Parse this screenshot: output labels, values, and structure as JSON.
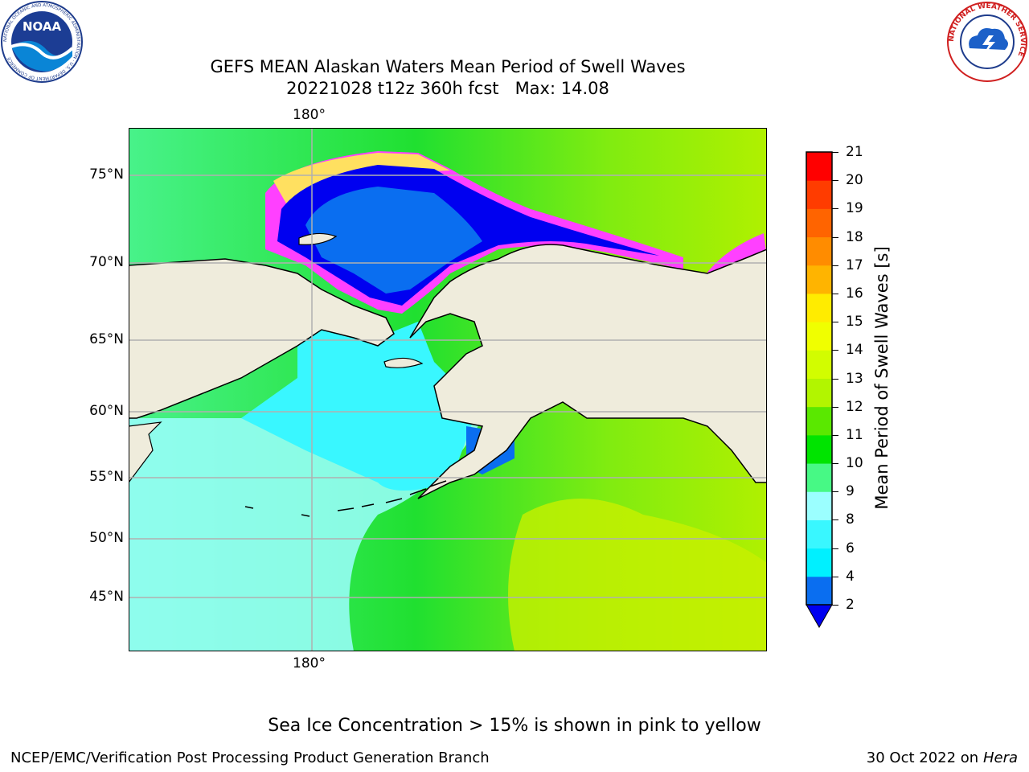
{
  "title": {
    "line1": "GEFS MEAN Alaskan Waters Mean Period of Swell Waves",
    "line2": "20221028 t12z 360h fcst   Max: 14.08"
  },
  "map": {
    "lon_labels_top": [
      "180°"
    ],
    "lon_labels_bottom": [
      "180°"
    ],
    "lat_labels": [
      "75°N",
      "70°N",
      "65°N",
      "60°N",
      "55°N",
      "50°N",
      "45°N"
    ],
    "land_color": "#efecdc",
    "grid_color": "#b0b0b0"
  },
  "colorbar": {
    "label": "Mean Period of Swell Waves [s]",
    "ticks": [
      "2",
      "4",
      "6",
      "8",
      "9",
      "10",
      "11",
      "12",
      "13",
      "14",
      "15",
      "16",
      "17",
      "18",
      "19",
      "20",
      "21"
    ],
    "colors": [
      "#0a6ef0",
      "#00f0ff",
      "#39f7ff",
      "#9bffff",
      "#47f985",
      "#00e400",
      "#5ae800",
      "#b2f500",
      "#d2fd00",
      "#f0ff00",
      "#ffec00",
      "#ffb400",
      "#ff8c00",
      "#ff6400",
      "#ff3c00",
      "#ff0000"
    ],
    "extend_color": "#0000f0"
  },
  "logos": {
    "noaa_text": "NOAA",
    "noaa_ring": "NATIONAL OCEANIC AND ATMOSPHERIC ADMINISTRATION · U.S. DEPARTMENT OF COMMERCE",
    "nws_ring": "NATIONAL WEATHER SERVICE"
  },
  "footnote": "Sea Ice Concentration > 15% is shown in pink to yellow",
  "credit_left": "NCEP/EMC/Verification Post Processing Product Generation Branch",
  "credit_right": {
    "date": "30 Oct 2022 on",
    "machine": "Hera"
  }
}
